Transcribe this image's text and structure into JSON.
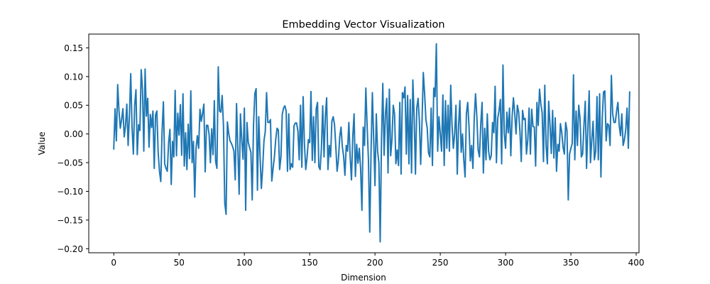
{
  "chart_data": {
    "type": "line",
    "title": "Embedding Vector Visualization",
    "xlabel": "Dimension",
    "ylabel": "Value",
    "xlim": [
      -19.15,
      402.15
    ],
    "ylim": [
      -0.207,
      0.174
    ],
    "xticks": [
      0,
      50,
      100,
      150,
      200,
      250,
      300,
      350,
      400
    ],
    "xtick_labels": [
      "0",
      "50",
      "100",
      "150",
      "200",
      "250",
      "300",
      "350",
      "400"
    ],
    "yticks": [
      -0.2,
      -0.15,
      -0.1,
      -0.05,
      0.0,
      0.05,
      0.1,
      0.15
    ],
    "ytick_labels": [
      "−0.20",
      "−0.15",
      "−0.10",
      "−0.05",
      "0.00",
      "0.05",
      "0.10",
      "0.15"
    ],
    "grid": false,
    "legend": "none",
    "line_color": "#1f77b4",
    "series": [
      {
        "values": [
          -0.026,
          0.044,
          -0.012,
          0.086,
          0.04,
          0.01,
          0.025,
          0.044,
          -0.005,
          0.014,
          0.052,
          -0.02,
          0.033,
          0.105,
          0.012,
          -0.035,
          0.05,
          0.077,
          -0.036,
          0.016,
          0.006,
          0.112,
          0.078,
          -0.03,
          0.113,
          0.031,
          0.062,
          -0.023,
          0.034,
          0.011,
          0.04,
          -0.06,
          0.033,
          0.04,
          -0.032,
          -0.065,
          -0.083,
          0.005,
          0.056,
          -0.052,
          -0.06,
          -0.065,
          -0.015,
          0.008,
          -0.088,
          -0.013,
          -0.04,
          0.076,
          -0.038,
          0.036,
          -0.002,
          0.051,
          -0.037,
          0.07,
          -0.056,
          0.002,
          -0.062,
          0.017,
          -0.043,
          0.075,
          -0.05,
          -0.013,
          -0.11,
          -0.025,
          -0.003,
          -0.025,
          0.043,
          0.022,
          0.036,
          0.052,
          -0.066,
          0.015,
          0.015,
          -0.001,
          -0.05,
          0.009,
          -0.036,
          0.058,
          -0.048,
          -0.06,
          0.117,
          0.04,
          0.038,
          0.067,
          0.014,
          -0.121,
          -0.14,
          0.021,
          0.001,
          -0.012,
          -0.016,
          -0.022,
          -0.03,
          -0.08,
          0.053,
          -0.025,
          -0.105,
          0.035,
          -0.01,
          -0.044,
          0.045,
          -0.133,
          0.02,
          -0.015,
          -0.024,
          -0.032,
          -0.115,
          0.015,
          0.07,
          0.079,
          -0.098,
          0.03,
          -0.037,
          -0.095,
          -0.06,
          -0.012,
          0.004,
          0.072,
          0.02,
          0.02,
          0.025,
          -0.082,
          -0.06,
          -0.04,
          -0.01,
          0.01,
          0.007,
          -0.062,
          -0.04,
          0.034,
          0.045,
          0.049,
          0.04,
          -0.065,
          0.035,
          -0.062,
          -0.052,
          -0.058,
          0.014,
          0.019,
          0.019,
          0.005,
          -0.045,
          0.05,
          -0.058,
          0.065,
          -0.017,
          -0.062,
          -0.041,
          -0.01,
          -0.015,
          0.074,
          -0.046,
          0.03,
          -0.05,
          0.044,
          0.055,
          -0.057,
          -0.062,
          -0.025,
          0.049,
          -0.04,
          0.031,
          0.063,
          -0.062,
          -0.02,
          -0.04,
          0.022,
          0.03,
          0.017,
          -0.021,
          -0.065,
          -0.045,
          -0.005,
          0.012,
          -0.022,
          -0.039,
          -0.072,
          -0.02,
          -0.03,
          0.02,
          -0.04,
          -0.08,
          -0.005,
          0.035,
          -0.074,
          -0.018,
          -0.051,
          -0.025,
          -0.06,
          -0.133,
          0.012,
          -0.02,
          0.08,
          0.013,
          -0.045,
          -0.171,
          -0.03,
          0.072,
          -0.01,
          -0.09,
          0.035,
          -0.03,
          -0.05,
          -0.188,
          -0.01,
          0.088,
          -0.037,
          0.034,
          0.062,
          -0.068,
          0.078,
          -0.038,
          -0.01,
          0.05,
          0.035,
          -0.052,
          -0.028,
          -0.055,
          0.055,
          -0.07,
          0.072,
          0.063,
          0.082,
          -0.035,
          0.067,
          -0.052,
          0.06,
          -0.068,
          0.094,
          0.03,
          -0.07,
          0.045,
          0.062,
          0.022,
          -0.053,
          0.02,
          0.107,
          0.07,
          0.025,
          0.01,
          -0.033,
          -0.04,
          0.045,
          -0.055,
          0.08,
          0.065,
          0.157,
          -0.03,
          0.03,
          0.0,
          -0.03,
          0.068,
          -0.055,
          0.058,
          -0.025,
          0.05,
          -0.03,
          0.085,
          0.015,
          -0.025,
          0.0,
          0.05,
          -0.07,
          0.014,
          0.058,
          -0.032,
          0.0,
          -0.045,
          -0.075,
          0.035,
          0.055,
          0.013,
          -0.047,
          -0.02,
          -0.06,
          0.028,
          0.07,
          0.03,
          -0.028,
          -0.04,
          0.017,
          0.055,
          -0.068,
          0.01,
          -0.045,
          0.035,
          -0.03,
          -0.045,
          -0.038,
          0.02,
          0.002,
          0.083,
          -0.05,
          0.027,
          0.041,
          0.06,
          -0.052,
          0.12,
          0.0,
          -0.025,
          0.038,
          0.002,
          0.045,
          -0.038,
          0.03,
          0.063,
          0.036,
          0.0,
          0.05,
          0.038,
          0.004,
          -0.048,
          0.041,
          0.025,
          0.027,
          -0.035,
          -0.01,
          0.045,
          -0.035,
          0.043,
          0.013,
          0.012,
          -0.056,
          0.055,
          0.015,
          0.078,
          0.052,
          0.037,
          -0.048,
          0.085,
          -0.02,
          -0.052,
          0.057,
          0.016,
          -0.034,
          0.041,
          -0.042,
          0.028,
          -0.065,
          -0.018,
          -0.03,
          0.018,
          0.003,
          -0.023,
          -0.035,
          0.02,
          0.006,
          -0.115,
          -0.035,
          -0.025,
          -0.017,
          0.103,
          -0.045,
          0.04,
          -0.02,
          0.05,
          0.027,
          -0.04,
          -0.035,
          0.015,
          0.057,
          -0.06,
          0.01,
          0.075,
          -0.05,
          -0.01,
          0.022,
          -0.045,
          -0.03,
          0.065,
          -0.045,
          0.07,
          -0.075,
          0.028,
          0.073,
          0.075,
          -0.012,
          0.018,
          0.015,
          -0.02,
          0.102,
          0.035,
          0.02,
          0.02,
          0.04,
          0.055,
          0.015,
          -0.003,
          0.035,
          -0.02,
          -0.01,
          0.008,
          0.045,
          -0.025,
          0.073
        ]
      }
    ]
  }
}
